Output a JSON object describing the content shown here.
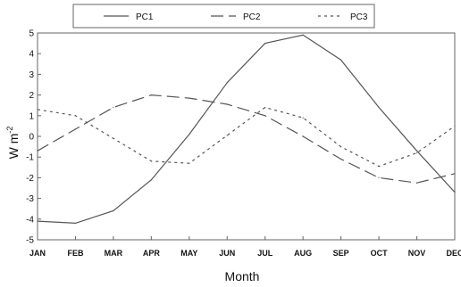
{
  "chart_data": {
    "type": "line",
    "categories": [
      "JAN",
      "FEB",
      "MAR",
      "APR",
      "MAY",
      "JUN",
      "JUL",
      "AUG",
      "SEP",
      "OCT",
      "NOV",
      "DEC"
    ],
    "series": [
      {
        "name": "PC1",
        "dash": "solid",
        "values": [
          -4.1,
          -4.2,
          -3.6,
          -2.1,
          0.1,
          2.6,
          4.5,
          4.9,
          3.7,
          1.4,
          -0.7,
          -2.7
        ]
      },
      {
        "name": "PC2",
        "dash": "long-dash",
        "values": [
          -0.7,
          0.35,
          1.4,
          2.0,
          1.85,
          1.55,
          1.0,
          0.0,
          -1.1,
          -2.0,
          -2.25,
          -1.8
        ]
      },
      {
        "name": "PC3",
        "dash": "short-dash",
        "values": [
          1.3,
          1.0,
          -0.1,
          -1.2,
          -1.3,
          0.05,
          1.4,
          0.9,
          -0.5,
          -1.45,
          -0.8,
          0.5
        ]
      }
    ],
    "xlabel": "Month",
    "ylabel": "W m",
    "ylabel_superscript": "-2",
    "ylim": [
      -5,
      5
    ],
    "yticks": [
      "5",
      "4",
      "3",
      "2",
      "1",
      "0",
      "-1",
      "-2",
      "-3",
      "-4",
      "-5"
    ],
    "legend": "top-center",
    "grid": false,
    "line_color": "#555555"
  }
}
